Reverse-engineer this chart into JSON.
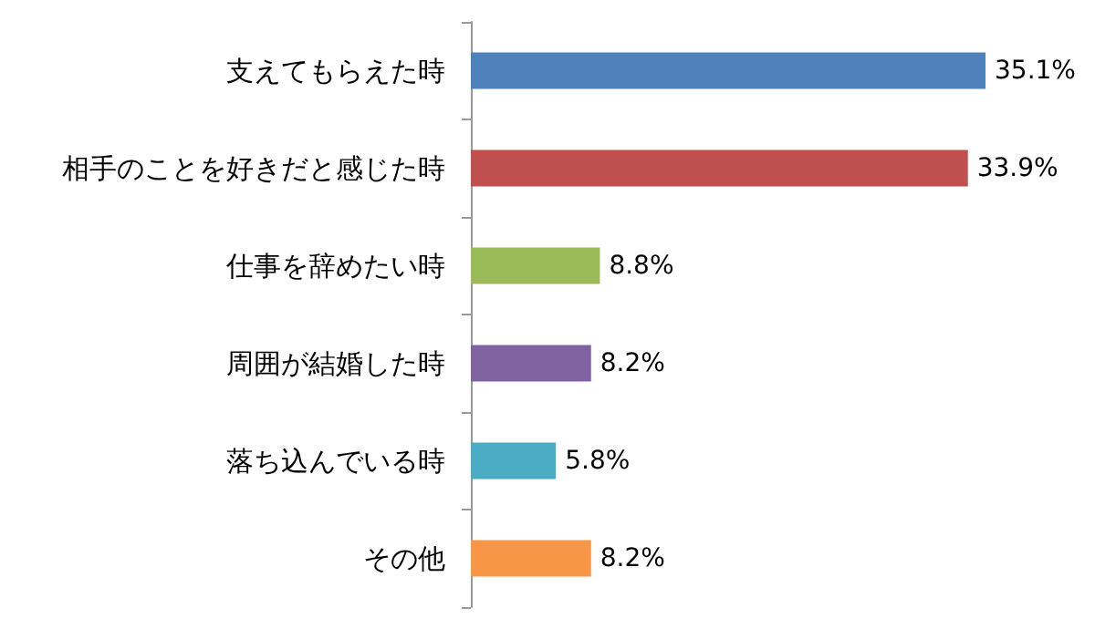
{
  "chart_data": {
    "type": "bar",
    "orientation": "horizontal",
    "categories": [
      "支えてもらえた時",
      "相手のことを好きだと感じた時",
      "仕事を辞めたい時",
      "周囲が結婚した時",
      "落ち込んでいる時",
      "その他"
    ],
    "values": [
      35.1,
      33.9,
      8.8,
      8.2,
      5.8,
      8.2
    ],
    "colors": [
      "#4f81bd",
      "#c0504d",
      "#9bbb59",
      "#8064a2",
      "#4bacc6",
      "#f79646"
    ],
    "value_labels": [
      "35.1%",
      "33.9%",
      "8.8%",
      "8.2%",
      "5.8%",
      "8.2%"
    ]
  }
}
